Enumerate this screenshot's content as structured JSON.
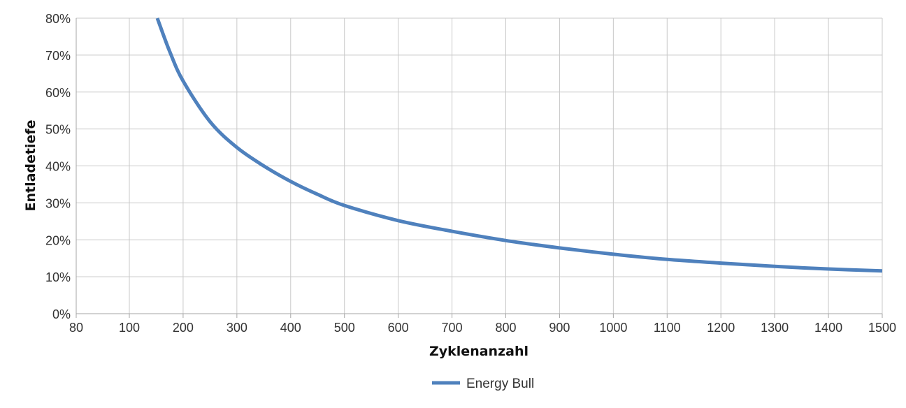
{
  "chart_data": {
    "type": "line",
    "xlabel": "Zyklenanzahl",
    "ylabel": "Entladetiefe",
    "x_ticks": [
      "80",
      "100",
      "200",
      "300",
      "400",
      "500",
      "600",
      "700",
      "800",
      "900",
      "1000",
      "1100",
      "1200",
      "1300",
      "1400",
      "1500"
    ],
    "y_ticks": [
      "0%",
      "10%",
      "20%",
      "30%",
      "40%",
      "50%",
      "60%",
      "70%",
      "80%"
    ],
    "xlim": [
      80,
      1500
    ],
    "ylim": [
      0,
      80
    ],
    "grid": true,
    "legend_position": "bottom",
    "colors": {
      "series": "#4f81bd",
      "grid": "#c8c8c8",
      "axis": "#a6a6a6"
    },
    "series": [
      {
        "name": "Energy Bull",
        "x": [
          152,
          175,
          200,
          250,
          300,
          350,
          400,
          450,
          500,
          600,
          700,
          800,
          900,
          1000,
          1100,
          1200,
          1300,
          1400,
          1500
        ],
        "y": [
          80,
          71,
          63,
          52,
          45,
          40,
          35.8,
          32.3,
          29.3,
          25.2,
          22.3,
          19.8,
          17.8,
          16.1,
          14.7,
          13.7,
          12.8,
          12.1,
          11.6
        ]
      }
    ]
  }
}
